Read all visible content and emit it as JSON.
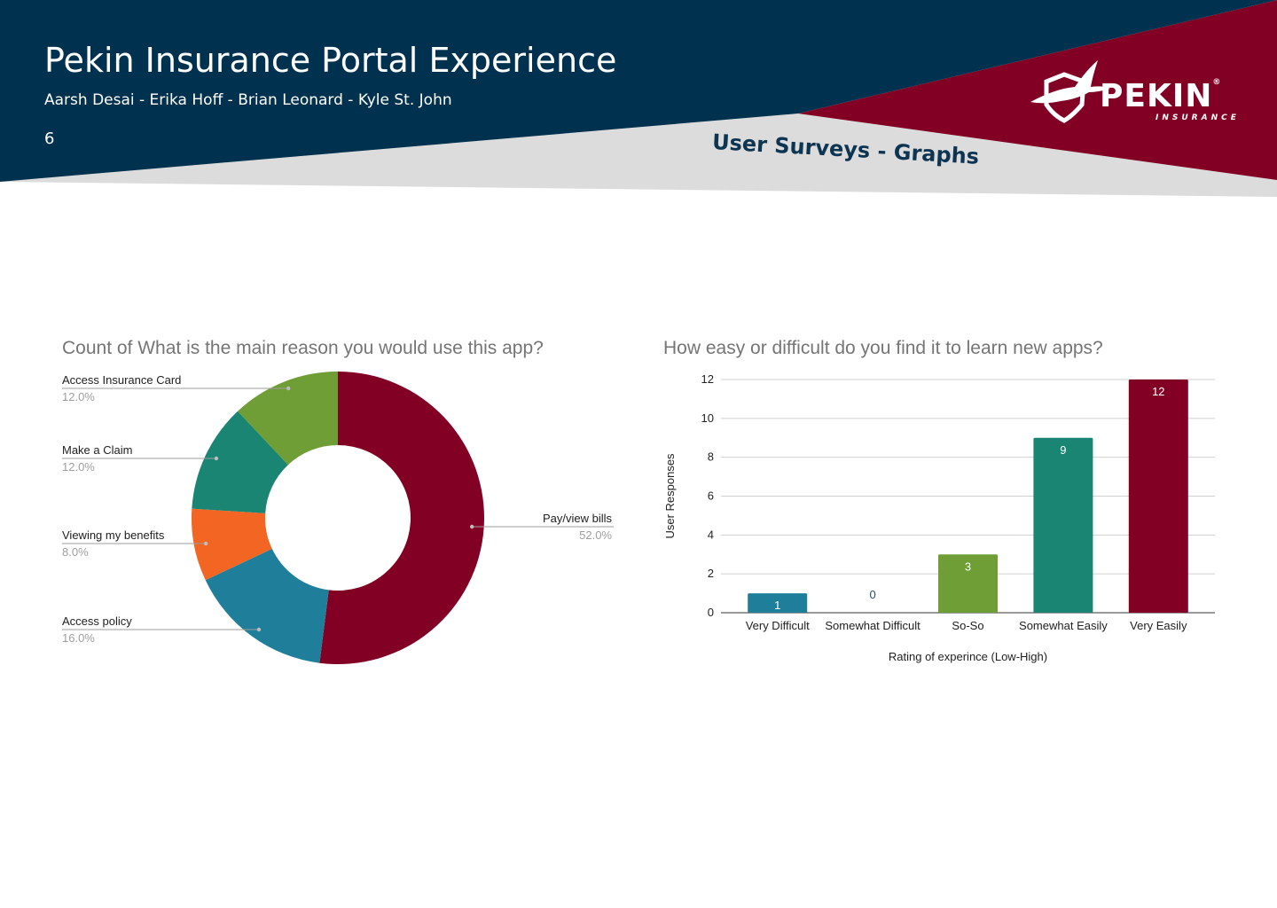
{
  "header": {
    "title": "Pekin Insurance Portal Experience",
    "authors": "Aarsh Desai - Erika Hoff - Brian Leonard - Kyle St. John",
    "page_number": "6",
    "section_title": "User Surveys - Graphs",
    "logo": {
      "word": "PEKIN",
      "sub": "INSURANCE",
      "registered": "®",
      "icon": "eagle-shield-icon"
    },
    "colors": {
      "navy": "#00324f",
      "maroon": "#830025",
      "gray_band": "#dcdcdc"
    }
  },
  "chart_data": [
    {
      "type": "pie",
      "title": "Count of What is the main reason you would use this app?",
      "donut": true,
      "slices": [
        {
          "label": "Pay/view bills",
          "percent": "52.0%",
          "value": 52,
          "color": "#830025"
        },
        {
          "label": "Access policy",
          "percent": "16.0%",
          "value": 16,
          "color": "#1f7f9b"
        },
        {
          "label": "Viewing my benefits",
          "percent": "8.0%",
          "value": 8,
          "color": "#f26522"
        },
        {
          "label": "Make a Claim",
          "percent": "12.0%",
          "value": 12,
          "color": "#1b8573"
        },
        {
          "label": "Access Insurance Card",
          "percent": "12.0%",
          "value": 12,
          "color": "#6e9e35"
        }
      ]
    },
    {
      "type": "bar",
      "title": "How easy or difficult do you find it to learn new apps?",
      "categories": [
        "Very Difficult",
        "Somewhat Difficult",
        "So-So",
        "Somewhat Easily",
        "Very Easily"
      ],
      "values": [
        1,
        0,
        3,
        9,
        12
      ],
      "colors": [
        "#1f7f9b",
        "#1f7f9b",
        "#6e9e35",
        "#1b8573",
        "#830025"
      ],
      "xlabel": "Rating of experince (Low-High)",
      "ylabel": "User Responses",
      "ylim": [
        0,
        12
      ],
      "yticks": [
        0,
        2,
        4,
        6,
        8,
        10,
        12
      ],
      "grid": true
    }
  ]
}
